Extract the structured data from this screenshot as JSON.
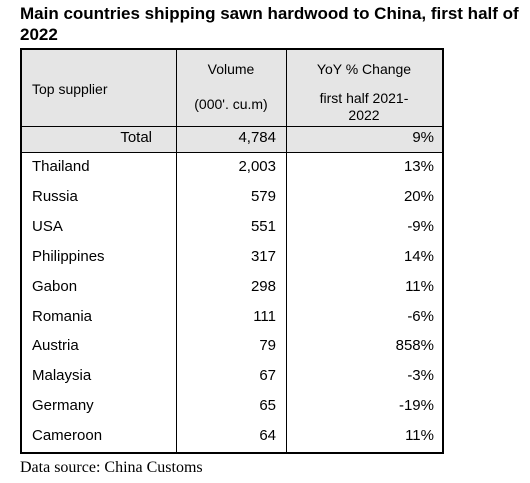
{
  "title": "Main countries shipping sawn hardwood to China, first half of 2022",
  "header": {
    "col1": "Top supplier",
    "col2_line1": "Volume",
    "col2_line2": "(000'. cu.m)",
    "col3_line1": "YoY % Change",
    "col3_line2": "first half 2021-",
    "col3_line3": "2022"
  },
  "total": {
    "label": "Total",
    "volume": "4,784",
    "yoy": "9%"
  },
  "rows": [
    {
      "country": "Thailand",
      "volume": "2,003",
      "yoy": "13%"
    },
    {
      "country": "Russia",
      "volume": "579",
      "yoy": "20%"
    },
    {
      "country": "USA",
      "volume": "551",
      "yoy": "-9%"
    },
    {
      "country": "Philippines",
      "volume": "317",
      "yoy": "14%"
    },
    {
      "country": "Gabon",
      "volume": "298",
      "yoy": "11%"
    },
    {
      "country": "Romania",
      "volume": "111",
      "yoy": "-6%"
    },
    {
      "country": "Austria",
      "volume": "79",
      "yoy": "858%"
    },
    {
      "country": "Malaysia",
      "volume": "67",
      "yoy": "-3%"
    },
    {
      "country": "Germany",
      "volume": "65",
      "yoy": "-19%"
    },
    {
      "country": "Cameroon",
      "volume": "64",
      "yoy": "11%"
    }
  ],
  "footer": "Data source: China Customs"
}
